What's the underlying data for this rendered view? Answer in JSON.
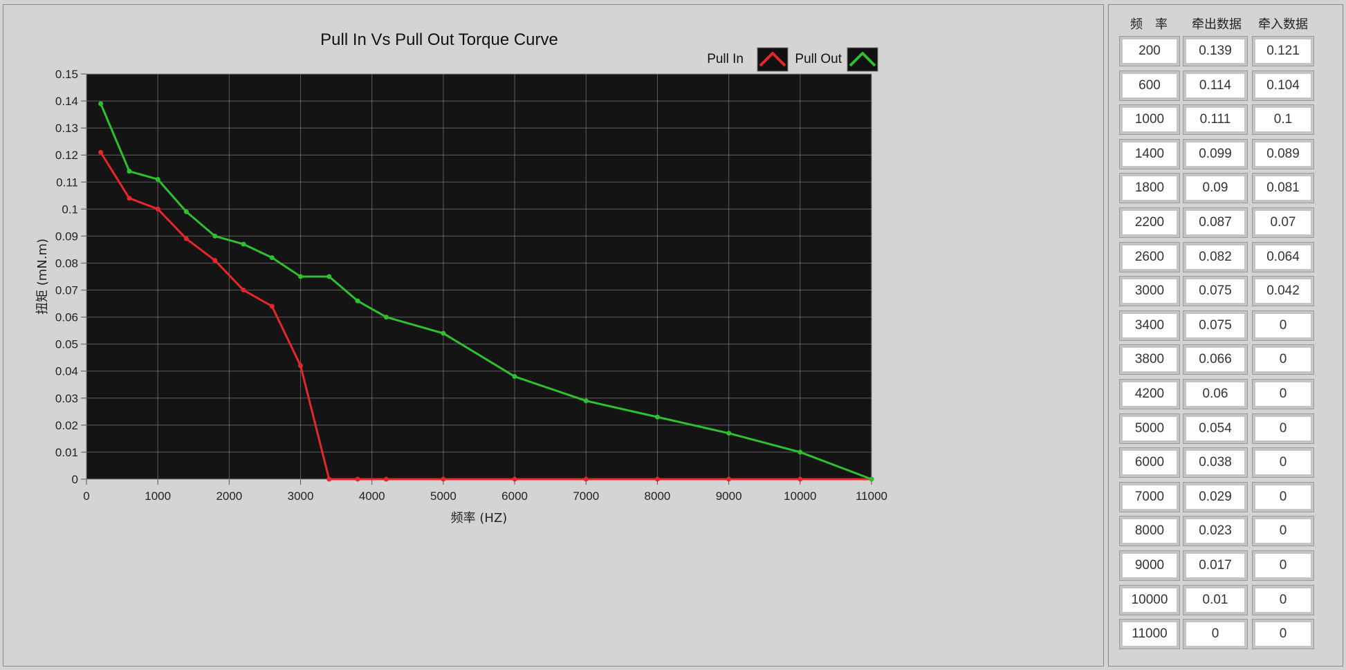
{
  "chart_data": {
    "type": "line",
    "title": "Pull In Vs Pull Out Torque Curve",
    "xlabel": "频率 (HZ)",
    "ylabel": "扭矩 (mN.m)",
    "xlim": [
      0,
      11000
    ],
    "ylim": [
      0,
      0.15
    ],
    "xticks": [
      "0",
      "1000",
      "2000",
      "3000",
      "4000",
      "5000",
      "6000",
      "7000",
      "8000",
      "9000",
      "10000",
      "11000"
    ],
    "yticks": [
      "0",
      "0.01",
      "0.02",
      "0.03",
      "0.04",
      "0.05",
      "0.06",
      "0.07",
      "0.08",
      "0.09",
      "0.1",
      "0.11",
      "0.12",
      "0.13",
      "0.14",
      "0.15"
    ],
    "grid": true,
    "legend_position": "top-right",
    "background": "#141414",
    "series": [
      {
        "name": "Pull In",
        "color": "#e8262a",
        "x": [
          200,
          600,
          1000,
          1400,
          1800,
          2200,
          2600,
          3000,
          3400,
          3800,
          4200,
          5000,
          6000,
          7000,
          8000,
          9000,
          10000,
          11000
        ],
        "y": [
          0.121,
          0.104,
          0.1,
          0.089,
          0.081,
          0.07,
          0.064,
          0.042,
          0,
          0,
          0,
          0,
          0,
          0,
          0,
          0,
          0,
          0
        ]
      },
      {
        "name": "Pull Out",
        "color": "#2ec02e",
        "x": [
          200,
          600,
          1000,
          1400,
          1800,
          2200,
          2600,
          3000,
          3400,
          3800,
          4200,
          5000,
          6000,
          7000,
          8000,
          9000,
          10000,
          11000
        ],
        "y": [
          0.139,
          0.114,
          0.111,
          0.099,
          0.09,
          0.087,
          0.082,
          0.075,
          0.075,
          0.066,
          0.06,
          0.054,
          0.038,
          0.029,
          0.023,
          0.017,
          0.01,
          0
        ]
      }
    ]
  },
  "table": {
    "headers": [
      "频　率",
      "牵出数据",
      "牵入数据"
    ],
    "rows": [
      [
        "200",
        "0.139",
        "0.121"
      ],
      [
        "600",
        "0.114",
        "0.104"
      ],
      [
        "1000",
        "0.111",
        "0.1"
      ],
      [
        "1400",
        "0.099",
        "0.089"
      ],
      [
        "1800",
        "0.09",
        "0.081"
      ],
      [
        "2200",
        "0.087",
        "0.07"
      ],
      [
        "2600",
        "0.082",
        "0.064"
      ],
      [
        "3000",
        "0.075",
        "0.042"
      ],
      [
        "3400",
        "0.075",
        "0"
      ],
      [
        "3800",
        "0.066",
        "0"
      ],
      [
        "4200",
        "0.06",
        "0"
      ],
      [
        "5000",
        "0.054",
        "0"
      ],
      [
        "6000",
        "0.038",
        "0"
      ],
      [
        "7000",
        "0.029",
        "0"
      ],
      [
        "8000",
        "0.023",
        "0"
      ],
      [
        "9000",
        "0.017",
        "0"
      ],
      [
        "10000",
        "0.01",
        "0"
      ],
      [
        "11000",
        "0",
        "0"
      ]
    ]
  }
}
